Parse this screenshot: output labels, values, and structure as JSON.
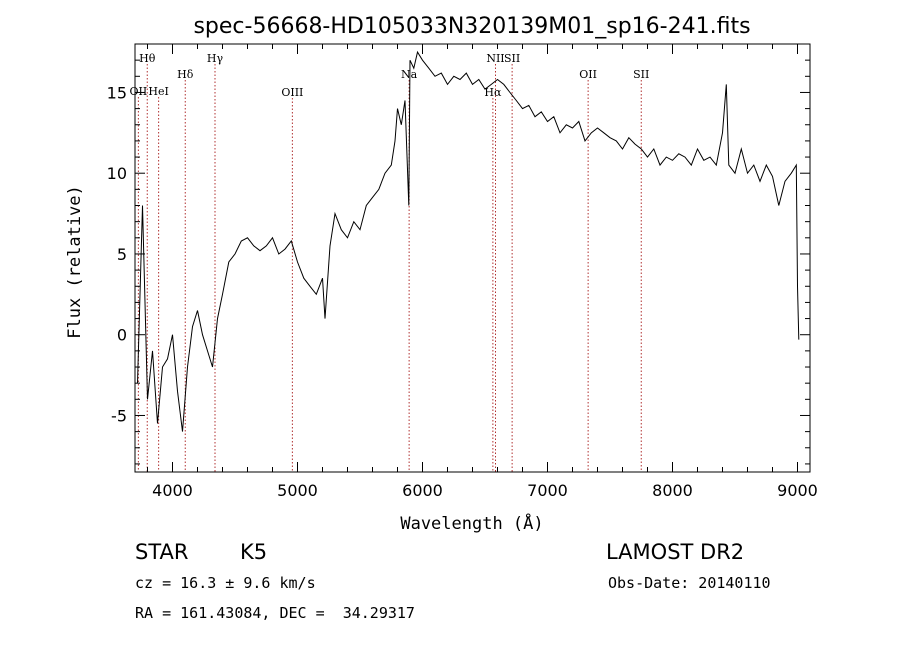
{
  "chart_data": {
    "type": "line",
    "title": "spec-56668-HD105033N320139M01_sp16-241.fits",
    "xlabel": "Wavelength (Å)",
    "ylabel": "Flux (relative)",
    "xlim": [
      3700,
      9100
    ],
    "ylim": [
      -8.5,
      18.0
    ],
    "x_ticks": [
      4000,
      5000,
      6000,
      7000,
      8000,
      9000
    ],
    "y_ticks": [
      -5,
      0,
      5,
      10,
      15
    ],
    "line_color": "#000000",
    "marker_color": "#b03030",
    "series": [
      {
        "x": [
          3720,
          3760,
          3800,
          3840,
          3880,
          3920,
          3960,
          4000,
          4040,
          4080,
          4120,
          4160,
          4200,
          4240,
          4280,
          4320,
          4360,
          4400,
          4450,
          4500,
          4550,
          4600,
          4650,
          4700,
          4750,
          4800,
          4850,
          4900,
          4950,
          5000,
          5050,
          5100,
          5150,
          5200,
          5220,
          5260,
          5300,
          5350,
          5400,
          5450,
          5500,
          5550,
          5600,
          5650,
          5700,
          5750,
          5780,
          5800,
          5830,
          5860,
          5890,
          5900,
          5930,
          5960,
          6000,
          6050,
          6100,
          6150,
          6200,
          6250,
          6300,
          6350,
          6400,
          6450,
          6500,
          6550,
          6600,
          6650,
          6700,
          6750,
          6800,
          6850,
          6900,
          6950,
          7000,
          7050,
          7100,
          7150,
          7200,
          7250,
          7300,
          7350,
          7400,
          7450,
          7500,
          7550,
          7600,
          7650,
          7700,
          7750,
          7800,
          7850,
          7900,
          7950,
          8000,
          8050,
          8100,
          8150,
          8200,
          8250,
          8300,
          8350,
          8400,
          8430,
          8450,
          8500,
          8550,
          8600,
          8650,
          8700,
          8750,
          8800,
          8850,
          8900,
          8950,
          8990,
          9000,
          9010
        ],
        "y": [
          -3.0,
          8.0,
          -4.0,
          -1.0,
          -5.5,
          -2.0,
          -1.5,
          0.0,
          -3.5,
          -6.0,
          -2.0,
          0.5,
          1.5,
          0.0,
          -1.0,
          -2.0,
          1.0,
          2.5,
          4.5,
          5.0,
          5.8,
          6.0,
          5.5,
          5.2,
          5.5,
          6.0,
          5.0,
          5.3,
          5.8,
          4.5,
          3.5,
          3.0,
          2.5,
          3.5,
          1.0,
          5.5,
          7.5,
          6.5,
          6.0,
          7.0,
          6.5,
          8.0,
          8.5,
          9.0,
          10.0,
          10.5,
          12.0,
          14.0,
          13.0,
          14.5,
          8.0,
          17.0,
          16.5,
          17.5,
          17.0,
          16.5,
          16.0,
          16.2,
          15.5,
          16.0,
          15.8,
          16.2,
          15.5,
          15.8,
          15.2,
          15.5,
          15.8,
          15.5,
          15.0,
          14.5,
          14.0,
          14.2,
          13.5,
          13.8,
          13.2,
          13.5,
          12.5,
          13.0,
          12.8,
          13.2,
          12.0,
          12.5,
          12.8,
          12.5,
          12.2,
          12.0,
          11.5,
          12.2,
          11.8,
          11.5,
          11.0,
          11.5,
          10.5,
          11.0,
          10.8,
          11.2,
          11.0,
          10.5,
          11.5,
          10.8,
          11.0,
          10.5,
          12.5,
          15.5,
          10.5,
          10.0,
          11.5,
          10.0,
          10.5,
          9.5,
          10.5,
          9.8,
          8.0,
          9.5,
          10.0,
          10.5,
          3.0,
          -0.3
        ]
      }
    ],
    "spectral_lines": [
      {
        "label": "OII",
        "x": 3727,
        "row": 2
      },
      {
        "label": "Hθ",
        "x": 3798,
        "row": 1
      },
      {
        "label": "HeI",
        "x": 3889,
        "row": 2
      },
      {
        "label": "Hδ",
        "x": 4102,
        "row": 3
      },
      {
        "label": "Hγ",
        "x": 4340,
        "row": 1
      },
      {
        "label": "OIII",
        "x": 4959,
        "row": 4
      },
      {
        "label": "Na",
        "x": 5893,
        "row": 3
      },
      {
        "label": "NII",
        "x": 6584,
        "row": 1
      },
      {
        "label": "Hα",
        "x": 6563,
        "row": 4
      },
      {
        "label": "SII",
        "x": 6717,
        "row": 1
      },
      {
        "label": "OII",
        "x": 7325,
        "row": 3
      },
      {
        "label": "SII",
        "x": 7750,
        "row": 3
      }
    ]
  },
  "info": {
    "class_label": "STAR",
    "subclass": "K5",
    "survey": "LAMOST DR2",
    "cz": "cz = 16.3 ± 9.6 km/s",
    "obs_date": "Obs-Date: 20140110",
    "coords": "RA = 161.43084, DEC =  34.29317"
  }
}
